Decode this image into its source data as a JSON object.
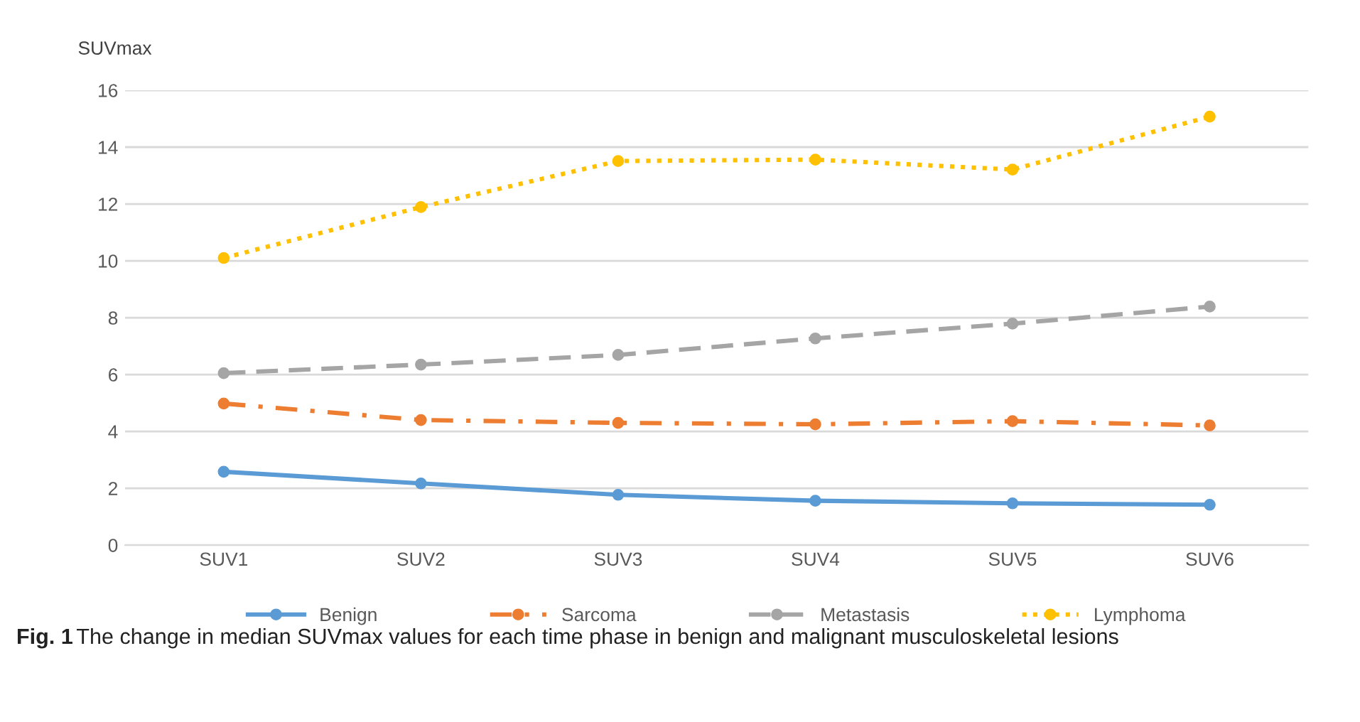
{
  "chart_data": {
    "type": "line",
    "ylabel": "SUVmax",
    "categories": [
      "SUV1",
      "SUV2",
      "SUV3",
      "SUV4",
      "SUV5",
      "SUV6"
    ],
    "series": [
      {
        "name": "Benign",
        "color": "#5b9bd5",
        "line_style": "solid",
        "values": [
          2.58,
          2.17,
          1.77,
          1.56,
          1.47,
          1.42
        ]
      },
      {
        "name": "Sarcoma",
        "color": "#ed7d31",
        "line_style": "dashdot",
        "values": [
          4.98,
          4.4,
          4.3,
          4.25,
          4.36,
          4.21
        ]
      },
      {
        "name": "Metastasis",
        "color": "#a5a5a5",
        "line_style": "dashed",
        "values": [
          6.05,
          6.35,
          6.69,
          7.27,
          7.79,
          8.39
        ]
      },
      {
        "name": "Lymphoma",
        "color": "#ffc000",
        "line_style": "dotted",
        "values": [
          10.1,
          11.89,
          13.51,
          13.56,
          13.21,
          15.07
        ]
      }
    ],
    "ylim": [
      0,
      16
    ],
    "yticks": [
      0,
      2,
      4,
      6,
      8,
      10,
      12,
      14,
      16
    ],
    "grid": "y",
    "legend": "bottom",
    "marker": "circle",
    "annotations": [
      "Fig. 1",
      "The change in median SUVmax values for each time phase in benign and malignant musculoskeletal lesions"
    ]
  }
}
